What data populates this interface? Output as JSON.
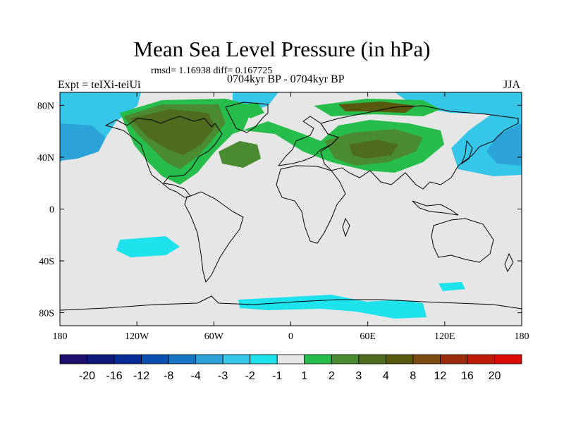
{
  "title": "Mean Sea Level Pressure (in hPa)",
  "stats": "rmsd= 1.16938 diff= 0.167725",
  "experiment": "Expt = teIXi-teiUi",
  "period": "0704kyr BP - 0704kyr BP",
  "season": "JJA",
  "axes": {
    "x_ticks": [
      {
        "value": -180,
        "label": "180"
      },
      {
        "value": -120,
        "label": "120W"
      },
      {
        "value": -60,
        "label": "60W"
      },
      {
        "value": 0,
        "label": "0"
      },
      {
        "value": 60,
        "label": "60E"
      },
      {
        "value": 120,
        "label": "120E"
      },
      {
        "value": 180,
        "label": "180"
      }
    ],
    "y_ticks": [
      {
        "value": 80,
        "label": "80N"
      },
      {
        "value": 40,
        "label": "40N"
      },
      {
        "value": 0,
        "label": "0"
      },
      {
        "value": -40,
        "label": "40S"
      },
      {
        "value": -80,
        "label": "80S"
      }
    ]
  },
  "colorbar": {
    "colors": [
      "#1c0f6e",
      "#10187c",
      "#062b96",
      "#0a4fb0",
      "#1776c4",
      "#2ba3d8",
      "#35c6e8",
      "#1ee3ec",
      "#e6e6e6",
      "#27bd4b",
      "#4a8a30",
      "#4f6b1e",
      "#58580f",
      "#7b4a10",
      "#9b2d0c",
      "#bf1a05",
      "#df0a0a"
    ],
    "labels": [
      "-20",
      "-16",
      "-12",
      "-8",
      "-4",
      "-3",
      "-2",
      "-1",
      "1",
      "2",
      "3",
      "4",
      "8",
      "12",
      "16",
      "20"
    ]
  },
  "colors": {
    "ocean_neutral": "#e6e6e6",
    "coastline": "#000000"
  }
}
